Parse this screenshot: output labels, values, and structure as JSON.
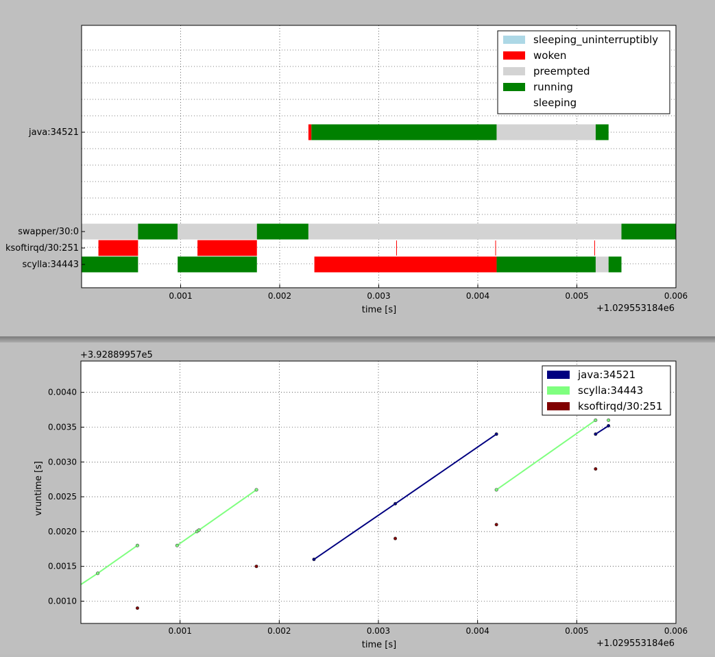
{
  "chart_data": [
    {
      "type": "bar",
      "subtype": "timeline",
      "xlabel": "time [s]",
      "x_offset_label": "+1.029553184e6",
      "xlim": [
        0.0,
        0.006
      ],
      "x_ticks": [
        "0.001",
        "0.002",
        "0.003",
        "0.004",
        "0.005",
        "0.006"
      ],
      "grid": true,
      "legend_position": "top-right",
      "legend": [
        {
          "name": "sleeping_uninterruptibly",
          "color": "#add8e6"
        },
        {
          "name": "woken",
          "color": "#ff0000"
        },
        {
          "name": "preempted",
          "color": "#d3d3d3"
        },
        {
          "name": "running",
          "color": "#008000"
        },
        {
          "name": "sleeping",
          "color": "#ffffff"
        }
      ],
      "rows": [
        {
          "label": "java:34521",
          "segments": [
            {
              "start": 0.00229,
              "end": 0.00232,
              "state": "woken"
            },
            {
              "start": 0.00232,
              "end": 0.00419,
              "state": "running"
            },
            {
              "start": 0.00419,
              "end": 0.00519,
              "state": "preempted"
            },
            {
              "start": 0.00519,
              "end": 0.00532,
              "state": "running"
            }
          ]
        },
        {
          "label": "swapper/30:0",
          "segments": [
            {
              "start": 0.0,
              "end": 0.00057,
              "state": "preempted"
            },
            {
              "start": 0.00057,
              "end": 0.00097,
              "state": "running"
            },
            {
              "start": 0.00097,
              "end": 0.00177,
              "state": "preempted"
            },
            {
              "start": 0.00177,
              "end": 0.00229,
              "state": "running"
            },
            {
              "start": 0.00229,
              "end": 0.00545,
              "state": "preempted"
            },
            {
              "start": 0.00545,
              "end": 0.006,
              "state": "running"
            }
          ]
        },
        {
          "label": "ksoftirqd/30:251",
          "segments": [
            {
              "start": 0.00017,
              "end": 0.00057,
              "state": "woken"
            },
            {
              "start": 0.00117,
              "end": 0.00177,
              "state": "woken"
            },
            {
              "start": 0.003175,
              "end": 0.003185,
              "state": "woken"
            },
            {
              "start": 0.004175,
              "end": 0.004185,
              "state": "woken"
            },
            {
              "start": 0.005175,
              "end": 0.005185,
              "state": "woken"
            }
          ]
        },
        {
          "label": "scylla:34443",
          "segments": [
            {
              "start": 0.0,
              "end": 0.00057,
              "state": "running"
            },
            {
              "start": 0.00097,
              "end": 0.00177,
              "state": "running"
            },
            {
              "start": 0.00235,
              "end": 0.00419,
              "state": "woken"
            },
            {
              "start": 0.00419,
              "end": 0.00519,
              "state": "running"
            },
            {
              "start": 0.00519,
              "end": 0.00532,
              "state": "preempted"
            },
            {
              "start": 0.00532,
              "end": 0.00545,
              "state": "running"
            }
          ]
        }
      ]
    },
    {
      "type": "line",
      "xlabel": "time [s]",
      "ylabel": "vruntime [s]",
      "x_offset_label": "+1.029553184e6",
      "y_offset_label": "+3.92889957e5",
      "xlim": [
        0.0,
        0.006
      ],
      "ylim": [
        0.00068,
        0.00445
      ],
      "x_ticks": [
        "0.001",
        "0.002",
        "0.003",
        "0.004",
        "0.005",
        "0.006"
      ],
      "y_ticks": [
        "0.0010",
        "0.0015",
        "0.0020",
        "0.0025",
        "0.0030",
        "0.0035",
        "0.0040"
      ],
      "grid": true,
      "legend_position": "top-right",
      "series": [
        {
          "name": "java:34521",
          "color": "#000080",
          "segments": [
            [
              [
                0.00235,
                0.0016
              ],
              [
                0.00317,
                0.0024
              ],
              [
                0.00419,
                0.0034
              ]
            ],
            [
              [
                0.00519,
                0.0034
              ],
              [
                0.00532,
                0.00352
              ]
            ]
          ]
        },
        {
          "name": "scylla:34443",
          "color": "#7fff7f",
          "segments": [
            [
              [
                0.0,
                0.00124
              ],
              [
                0.00017,
                0.0014
              ],
              [
                0.00057,
                0.0018
              ]
            ],
            [
              [
                0.00097,
                0.0018
              ],
              [
                0.00117,
                0.002
              ],
              [
                0.00119,
                0.00202
              ],
              [
                0.00177,
                0.0026
              ]
            ],
            [
              [
                0.00419,
                0.0026
              ],
              [
                0.00519,
                0.0036
              ]
            ],
            [
              [
                0.00532,
                0.0036
              ]
            ]
          ]
        },
        {
          "name": "ksoftirqd/30:251",
          "color": "#800000",
          "segments": [
            [
              [
                0.00057,
                0.0009
              ]
            ],
            [
              [
                0.00177,
                0.0015
              ]
            ],
            [
              [
                0.00317,
                0.0019
              ]
            ],
            [
              [
                0.00419,
                0.0021
              ]
            ],
            [
              [
                0.00519,
                0.0029
              ]
            ]
          ]
        }
      ]
    }
  ]
}
